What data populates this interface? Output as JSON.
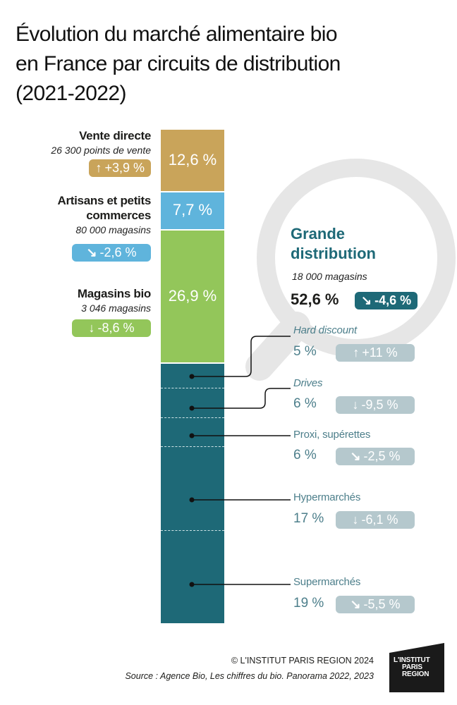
{
  "title_lines": [
    "Évolution du marché alimentaire bio",
    "en France par circuits de distribution",
    "(2021-2022)"
  ],
  "chart_data": {
    "type": "bar",
    "stacked": true,
    "title": "Évolution du marché alimentaire bio en France par circuits de distribution (2021-2022)",
    "segments": [
      {
        "name": "Vente directe",
        "sub": "26 300 points de vente",
        "share": 12.6,
        "share_label": "12,6 %",
        "change": 3.9,
        "change_label": "+3,9 %",
        "arrow": "up",
        "color": "#c9a45a"
      },
      {
        "name": "Artisans et petits commerces",
        "sub": "80 000 magasins",
        "share": 7.7,
        "share_label": "7,7 %",
        "change": -2.6,
        "change_label": "-2,6 %",
        "arrow": "down-right",
        "color": "#5fb4dc"
      },
      {
        "name": "Magasins bio",
        "sub": "3 046 magasins",
        "share": 26.9,
        "share_label": "26,9 %",
        "change": -8.6,
        "change_label": "-8,6 %",
        "arrow": "down",
        "color": "#93c65a"
      },
      {
        "name": "Grande distribution",
        "sub": "18 000 magasins",
        "share": 52.6,
        "share_label": "52,6 %",
        "change": -4.6,
        "change_label": "-4,6 %",
        "arrow": "down-right",
        "color": "#1e6977"
      }
    ],
    "grande_distribution_breakdown": [
      {
        "name": "Hard discount",
        "italic": true,
        "share": 5,
        "share_label": "5 %",
        "change": 11,
        "change_label": "+11 %",
        "arrow": "up"
      },
      {
        "name": "Drives",
        "italic": true,
        "share": 6,
        "share_label": "6 %",
        "change": -9.5,
        "change_label": "-9,5 %",
        "arrow": "down"
      },
      {
        "name": "Proxi, supérettes",
        "italic": false,
        "share": 6,
        "share_label": "6 %",
        "change": -2.5,
        "change_label": "-2,5 %",
        "arrow": "down-right"
      },
      {
        "name": "Hypermarchés",
        "italic": false,
        "share": 17,
        "share_label": "17 %",
        "change": -6.1,
        "change_label": "-6,1 %",
        "arrow": "down"
      },
      {
        "name": "Supermarchés",
        "italic": false,
        "share": 19,
        "share_label": "19 %",
        "change": -5.5,
        "change_label": "-5,5 %",
        "arrow": "down-right"
      }
    ]
  },
  "footer": {
    "copyright": "© L'INSTITUT PARIS REGION 2024",
    "source": "Source : Agence Bio, Les chiffres du bio. Panorama 2022, 2023",
    "logo_lines": [
      "L'INSTITUT",
      "PARIS",
      "REGION"
    ]
  },
  "icons": {
    "up": "arrow-up-icon",
    "down": "arrow-down-icon",
    "down-right": "arrow-down-right-icon"
  },
  "colors": {
    "grey_pill": "#b5c8cd",
    "teal_text": "#4d7f8b",
    "lens": "#e6e6e6"
  }
}
